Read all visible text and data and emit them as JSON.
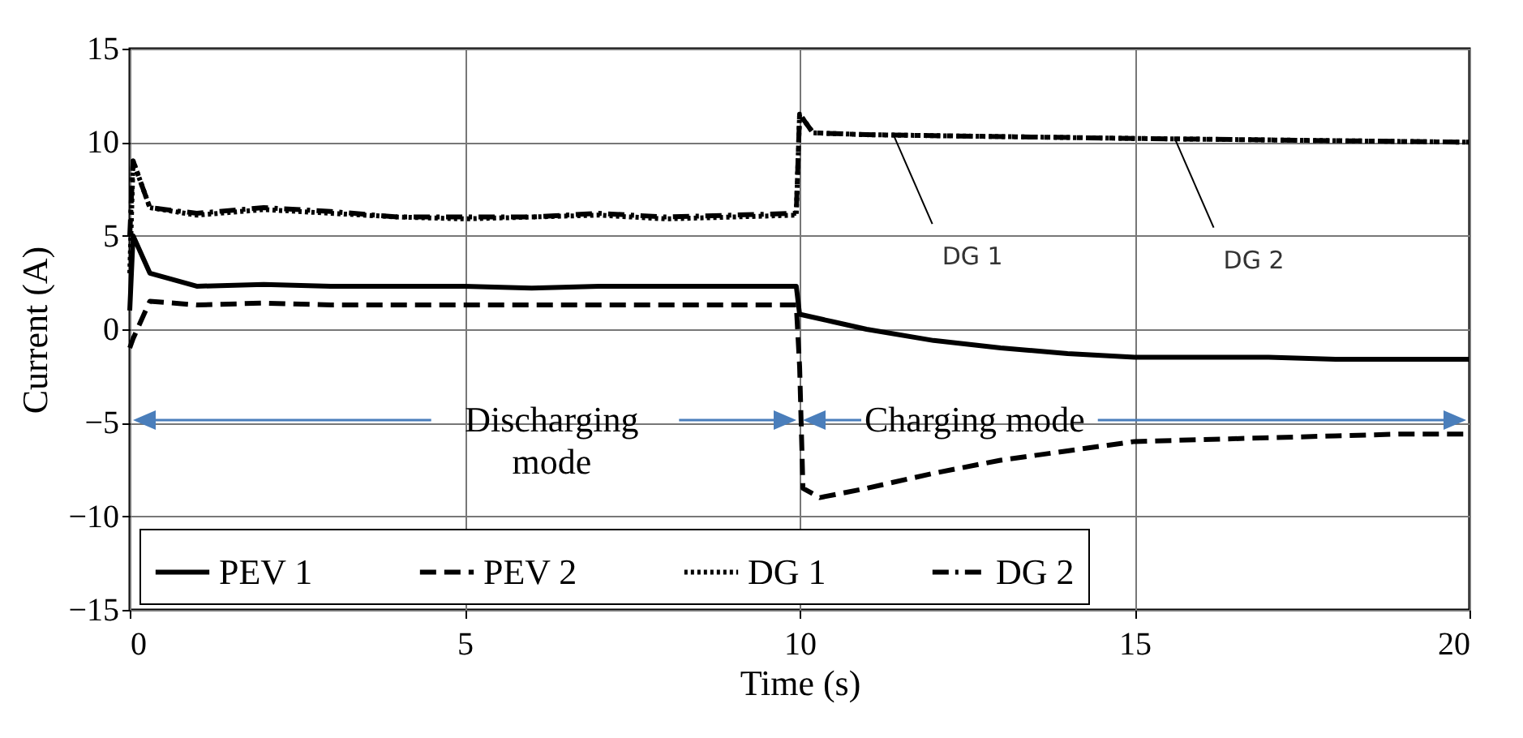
{
  "chart_data": {
    "type": "line",
    "xlabel": "Time (s)",
    "ylabel": "Current (A)",
    "xlim": [
      0,
      20
    ],
    "xticks": [
      0,
      5,
      10,
      15,
      20
    ],
    "ylim": [
      -15,
      15
    ],
    "yticks": [
      -15,
      -10,
      -5,
      0,
      5,
      10,
      15
    ],
    "grid": true,
    "legend": "bottom",
    "marker": "none",
    "series": [
      {
        "name": "PEV 1",
        "color": "#000000",
        "line_style": "solid",
        "x": [
          0,
          0.05,
          0.3,
          1,
          2,
          3,
          4,
          5,
          6,
          7,
          8,
          9,
          9.95,
          10,
          10.5,
          11,
          12,
          13,
          14,
          15,
          16,
          17,
          18,
          19,
          20
        ],
        "values": [
          1,
          5,
          3,
          2.3,
          2.4,
          2.3,
          2.3,
          2.3,
          2.2,
          2.3,
          2.3,
          2.3,
          2.3,
          0.8,
          0.4,
          0,
          -0.6,
          -1,
          -1.3,
          -1.5,
          -1.5,
          -1.5,
          -1.6,
          -1.6,
          -1.6
        ]
      },
      {
        "name": "PEV 2",
        "color": "#000000",
        "line_style": "dashed",
        "x": [
          0,
          0.05,
          0.3,
          1,
          2,
          3,
          4,
          5,
          6,
          7,
          8,
          9,
          9.95,
          10,
          10.05,
          10.3,
          11,
          12,
          13,
          14,
          15,
          16,
          17,
          18,
          19,
          20
        ],
        "values": [
          -1,
          -0.5,
          1.5,
          1.3,
          1.4,
          1.3,
          1.3,
          1.3,
          1.3,
          1.3,
          1.3,
          1.3,
          1.3,
          -2,
          -8.5,
          -9,
          -8.5,
          -7.7,
          -7,
          -6.5,
          -6,
          -5.9,
          -5.8,
          -5.7,
          -5.6,
          -5.6
        ]
      },
      {
        "name": "DG 1",
        "color": "#000000",
        "line_style": "dotted",
        "x": [
          0,
          0.05,
          0.3,
          1,
          2,
          3,
          4,
          5,
          6,
          7,
          8,
          9,
          9.95,
          10,
          10.2,
          11,
          15,
          20
        ],
        "values": [
          3,
          9,
          6.5,
          6.1,
          6.4,
          6.2,
          6,
          5.9,
          6,
          6.1,
          5.9,
          6,
          6.1,
          11.5,
          10.5,
          10.4,
          10.2,
          10
        ]
      },
      {
        "name": "DG 2",
        "color": "#000000",
        "line_style": "dashdot",
        "x": [
          0,
          0.05,
          0.3,
          1,
          2,
          3,
          4,
          5,
          6,
          7,
          8,
          9,
          9.95,
          10,
          10.2,
          11,
          15,
          20
        ],
        "values": [
          5,
          9,
          6.5,
          6.2,
          6.5,
          6.3,
          6,
          6,
          6,
          6.2,
          6,
          6.1,
          6.2,
          11.5,
          10.5,
          10.4,
          10.2,
          10
        ]
      }
    ],
    "annotations": [
      "Discharging mode",
      "Charging mode",
      {
        "text": "DG 1",
        "x": 11.4,
        "y": 10.4
      },
      {
        "text": "DG 2",
        "x": 15.6,
        "y": 10.2
      }
    ]
  }
}
